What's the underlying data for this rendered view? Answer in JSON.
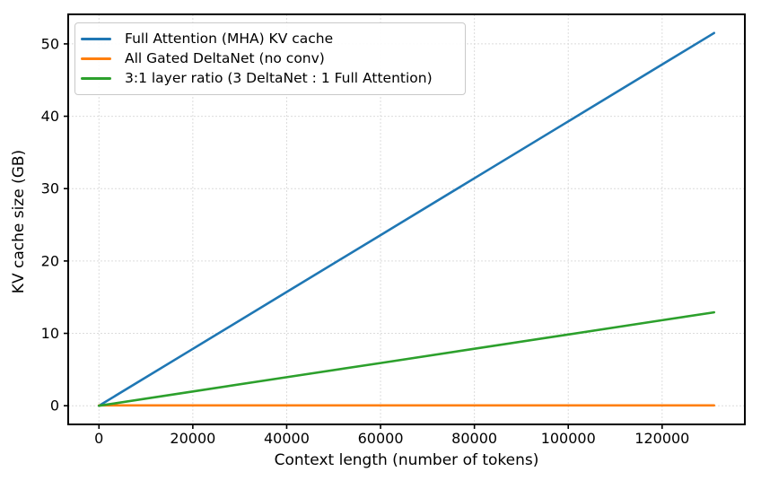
{
  "figure": {
    "background": "#ffffff",
    "text_color": "#000000",
    "spine_color": "#000000",
    "grid_color": "#dcdcdc"
  },
  "chart_data": {
    "type": "line",
    "title": "",
    "xlabel": "Context length (number of tokens)",
    "ylabel": "KV cache size (GB)",
    "xlim": [
      -6554,
      137626
    ],
    "ylim": [
      -2.58,
      54.08
    ],
    "xticks": [
      0,
      20000,
      40000,
      60000,
      80000,
      100000,
      120000
    ],
    "yticks": [
      0,
      10,
      20,
      30,
      40,
      50
    ],
    "grid": true,
    "grid_style": "dashed",
    "legend_position": "upper-left",
    "x": [
      0,
      20000,
      40000,
      60000,
      80000,
      100000,
      120000,
      131072
    ],
    "series": [
      {
        "name": "Full Attention (MHA) KV cache",
        "color": "#1f77b4",
        "values": [
          0,
          7.86,
          15.72,
          23.57,
          31.43,
          39.29,
          47.15,
          51.5
        ]
      },
      {
        "name": "All Gated DeltaNet (no conv)",
        "color": "#ff7f0e",
        "values": [
          0.05,
          0.05,
          0.05,
          0.05,
          0.05,
          0.05,
          0.05,
          0.05
        ]
      },
      {
        "name": "3:1 layer ratio (3 DeltaNet : 1 Full Attention)",
        "color": "#2ca02c",
        "values": [
          0,
          1.97,
          3.94,
          5.9,
          7.87,
          9.84,
          11.81,
          12.9
        ]
      }
    ]
  }
}
